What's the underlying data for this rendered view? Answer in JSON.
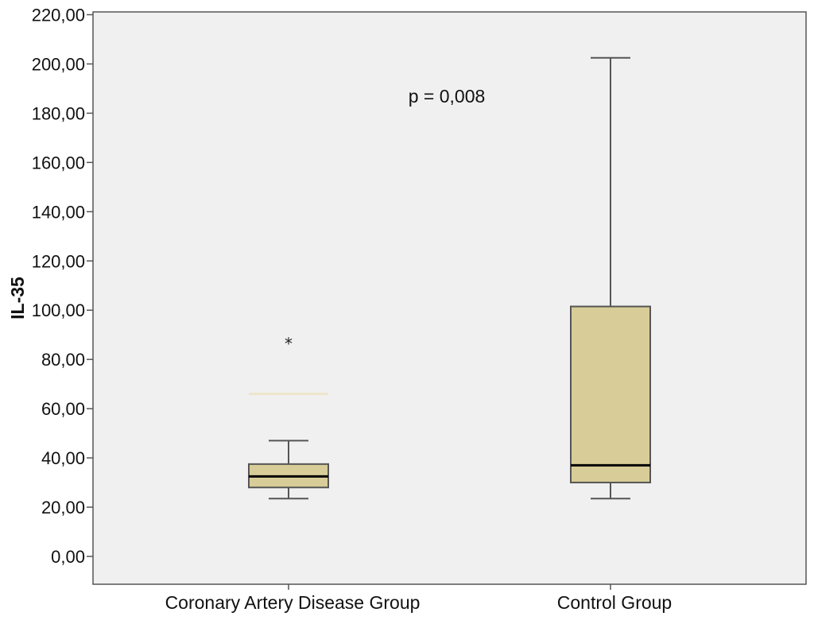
{
  "chart_data": {
    "type": "boxplot",
    "ylabel": "IL-35",
    "xlabel": "",
    "ylim": [
      -10,
      220
    ],
    "yticks": [
      "0,00",
      "20,00",
      "40,00",
      "60,00",
      "80,00",
      "100,00",
      "120,00",
      "140,00",
      "160,00",
      "180,00",
      "200,00",
      "220,00"
    ],
    "ytick_values": [
      0,
      20,
      40,
      60,
      80,
      100,
      120,
      140,
      160,
      180,
      200,
      220
    ],
    "grid": false,
    "annotation": "p = 0,008",
    "groups": [
      {
        "category": "Coronary Artery Disease Group",
        "whisker_low": 23.5,
        "q1": 28,
        "median": 32.5,
        "q3": 37.5,
        "whisker_high": 47,
        "extra_line": 66,
        "outliers": [
          {
            "value": 87,
            "marker": "*"
          }
        ]
      },
      {
        "category": "Control Group",
        "whisker_low": 23.5,
        "q1": 30,
        "median": 37,
        "q3": 101.5,
        "whisker_high": 202.5,
        "outliers": []
      }
    ],
    "colors": {
      "box_fill": "#d8cd98",
      "plot_background": "#f0f0f0",
      "median": "#000000",
      "extra_line": "#ede6cc"
    }
  }
}
